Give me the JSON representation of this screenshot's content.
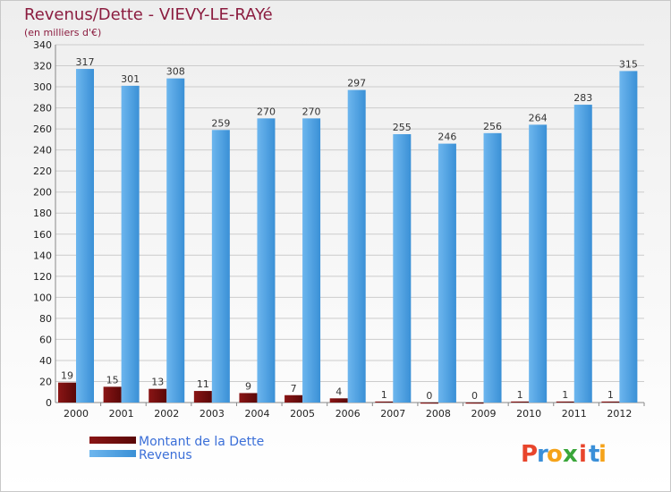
{
  "chart_data": {
    "type": "bar",
    "title": "Revenus/Dette - VIEVY-LE-RAYé",
    "subtitle": "(en milliers d'€)",
    "categories": [
      "2000",
      "2001",
      "2002",
      "2003",
      "2004",
      "2005",
      "2006",
      "2007",
      "2008",
      "2009",
      "2010",
      "2011",
      "2012"
    ],
    "series": [
      {
        "name": "Montant de la Dette",
        "color": "#6b0a0a",
        "values": [
          19,
          15,
          13,
          11,
          9,
          7,
          4,
          1,
          0,
          0,
          1,
          1,
          1
        ]
      },
      {
        "name": "Revenus",
        "color": "#4a9ee0",
        "values": [
          317,
          301,
          308,
          259,
          270,
          270,
          297,
          255,
          246,
          256,
          264,
          283,
          315
        ]
      }
    ],
    "ylim": [
      0,
      340
    ],
    "yticks": [
      0,
      20,
      40,
      60,
      80,
      100,
      120,
      140,
      160,
      180,
      200,
      220,
      240,
      260,
      280,
      300,
      320,
      340
    ],
    "grid": true,
    "legend": "bottom-left"
  },
  "logo": {
    "letters": [
      "P",
      "r",
      "o",
      "x",
      "i",
      "t",
      "i"
    ],
    "colors": [
      "#e8452c",
      "#3a8fd8",
      "#f5a31a",
      "#3aa63a",
      "#e8452c",
      "#3a8fd8",
      "#f5a31a"
    ]
  }
}
